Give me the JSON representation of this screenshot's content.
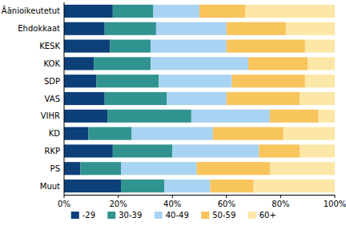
{
  "chart_data": {
    "type": "bar",
    "orientation": "horizontal",
    "stacked": true,
    "legend": "bottom",
    "grid": false,
    "categories": [
      "Äänioikeutetut",
      "Ehdokkaat",
      "KESK",
      "KOK",
      "SDP",
      "VAS",
      "VIHR",
      "KD",
      "RKP",
      "PS",
      "Muut"
    ],
    "series": [
      {
        "name": "-29",
        "color": "#0d3f78",
        "values": [
          18,
          15,
          17,
          11,
          12,
          15,
          16,
          9,
          18,
          6,
          21
        ]
      },
      {
        "name": "30-39",
        "color": "#31938f",
        "values": [
          15,
          19,
          15,
          21,
          23,
          23,
          31,
          16,
          22,
          15,
          16
        ]
      },
      {
        "name": "40-49",
        "color": "#a9d3f3",
        "values": [
          17,
          26,
          28,
          36,
          27,
          22,
          29,
          30,
          32,
          28,
          17
        ]
      },
      {
        "name": "50-59",
        "color": "#f8c45c",
        "values": [
          17,
          22,
          29,
          22,
          27,
          27,
          18,
          26,
          15,
          27,
          16
        ]
      },
      {
        "name": "60+",
        "color": "#fde7a6",
        "values": [
          33,
          18,
          11,
          10,
          11,
          13,
          6,
          19,
          13,
          24,
          30
        ]
      }
    ],
    "xlim": [
      0,
      100
    ],
    "xticks": [
      {
        "value": 0,
        "label": "0%"
      },
      {
        "value": 20,
        "label": "20%"
      },
      {
        "value": 40,
        "label": "40%"
      },
      {
        "value": 60,
        "label": "60%"
      },
      {
        "value": 80,
        "label": "80%"
      },
      {
        "value": 100,
        "label": "100%"
      }
    ]
  }
}
